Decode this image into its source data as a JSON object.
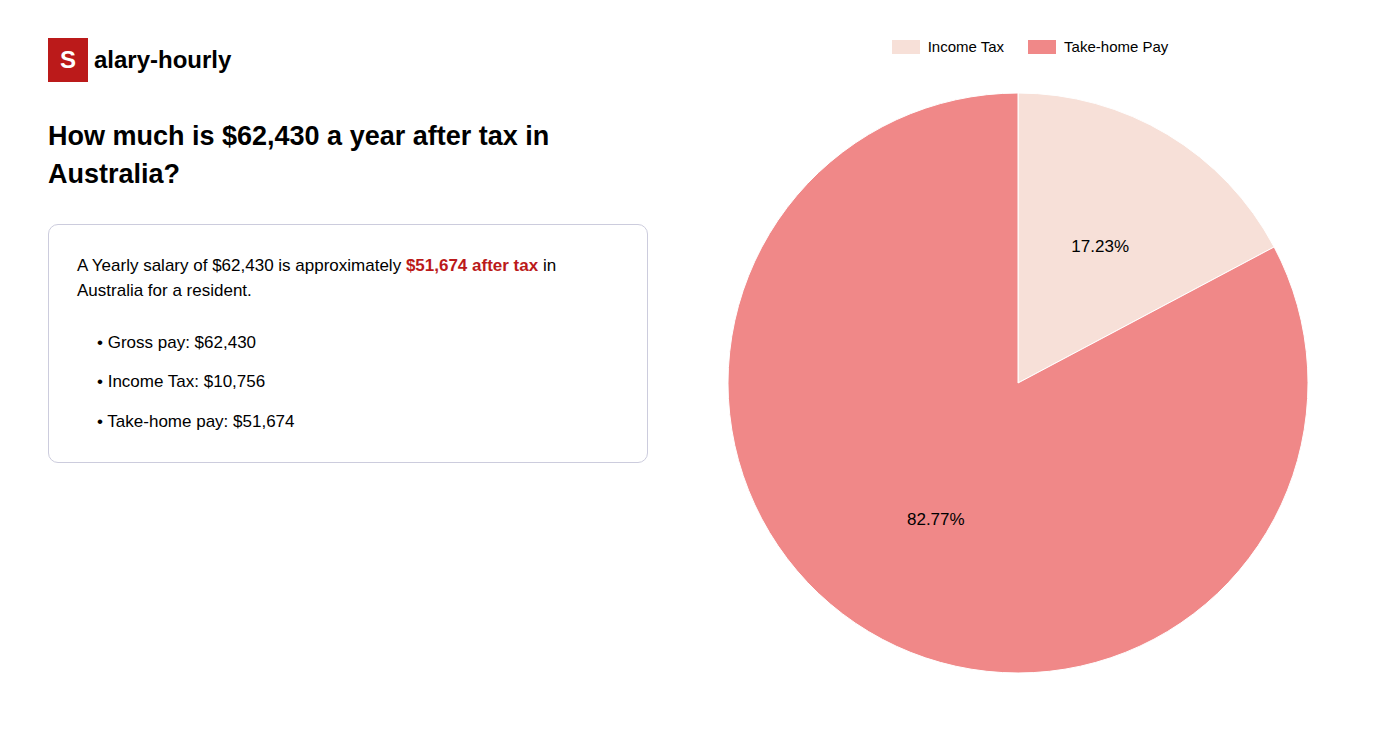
{
  "chart_data": {
    "type": "pie",
    "title": [
      "How much is $62,430 a year after tax in",
      "Australia?"
    ],
    "categories": [
      "Income Tax",
      "Take-home Pay"
    ],
    "values": [
      17.23,
      82.77
    ],
    "value_labels": [
      "17.23%",
      "82.77%"
    ],
    "colors": [
      "#f7e0d8",
      "#f08888"
    ],
    "legend": "top",
    "data_labels": true,
    "annotations": [
      [
        {
          "text": "S",
          "color": "#bb1a1a"
        },
        {
          "text": "alary-hourly"
        }
      ],
      [
        {
          "text": "A Yearly salary of $62,430 is approximately "
        },
        {
          "text": "$51,674 after tax",
          "color": "#bb1a1a"
        },
        {
          "text": " in"
        }
      ],
      [
        {
          "text": "Australia for a resident."
        }
      ],
      [
        {
          "text": "•  Gross pay: $62,430"
        }
      ],
      [
        {
          "text": "•  Income Tax: $10,756"
        }
      ],
      [
        {
          "text": "•  Take-home pay: $51,674"
        }
      ]
    ]
  }
}
